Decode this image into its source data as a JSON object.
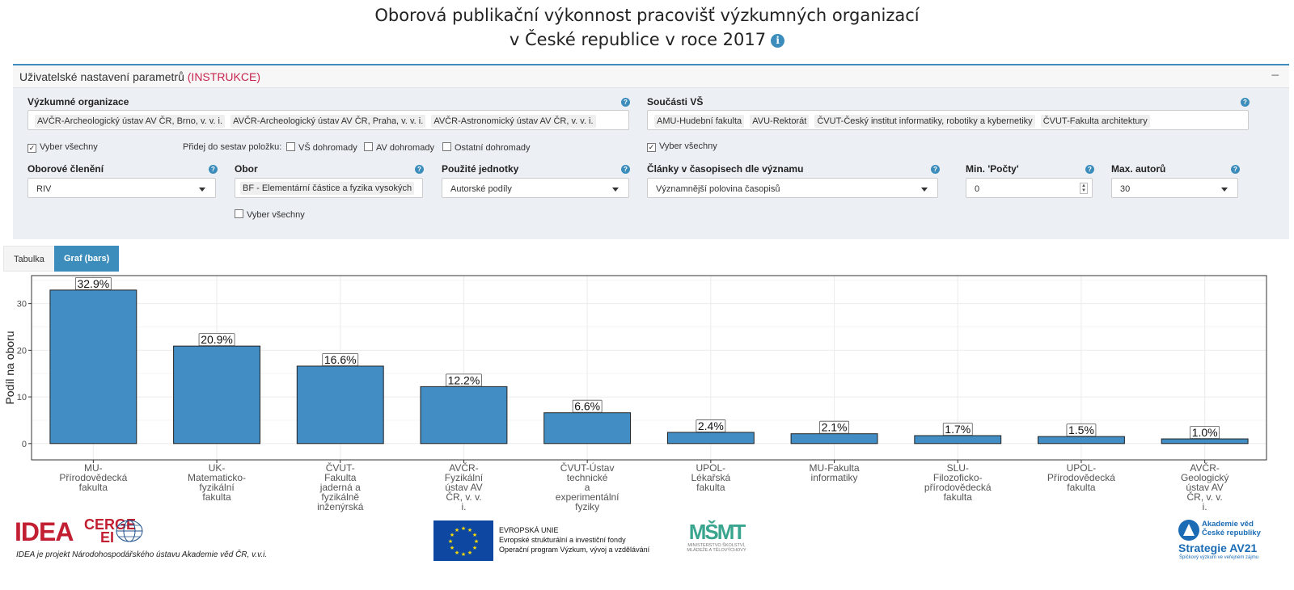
{
  "header": {
    "title_line1": "Oborová publikační výkonnost pracovišť výzkumných organizací",
    "title_line2": "v České republice v roce 2017",
    "info_icon": "i"
  },
  "settings": {
    "title": "Uživatelské nastavení parametrů",
    "instructions_link": "(INSTRUKCE)",
    "collapse_symbol": "−",
    "research_orgs": {
      "label": "Výzkumné organizace",
      "tags": [
        "AVČR-Archeologický ústav AV ČR, Brno, v. v. i.",
        "AVČR-Archeologický ústav AV ČR, Praha, v. v. i.",
        "AVČR-Astronomický ústav AV ČR, v. v. i."
      ]
    },
    "university_parts": {
      "label": "Součásti VŠ",
      "tags": [
        "AMU-Hudební fakulta",
        "AVU-Rektorát",
        "ČVUT-Český institut informatiky, robotiky a kybernetiky",
        "ČVUT-Fakulta architektury"
      ]
    },
    "select_all_label": "Vyber všechny",
    "add_to_sets_label": "Přidej do sestav položku:",
    "add_options": [
      "VŠ dohromady",
      "AV dohromady",
      "Ostatní dohromady"
    ],
    "check_mark": "✓",
    "field_division": {
      "label": "Oborové členění",
      "value": "RIV"
    },
    "field": {
      "label": "Obor",
      "value": "BF - Elementární částice a fyzika vysokých"
    },
    "units": {
      "label": "Použité jednotky",
      "value": "Autorské podíly"
    },
    "journal_articles": {
      "label": "Články v časopisech dle významu",
      "value": "Významnější polovina časopisů"
    },
    "min_counts": {
      "label": "Min. 'Počty'",
      "value": "0"
    },
    "max_authors": {
      "label": "Max. autorů",
      "value": "30"
    },
    "help_symbol": "?"
  },
  "tabs": [
    {
      "label": "Tabulka",
      "active": false
    },
    {
      "label": "Graf (bars)",
      "active": true
    }
  ],
  "chart_data": {
    "type": "bar",
    "ylabel": "Podíl na oboru",
    "xlabel": "",
    "ylim": [
      -3.5,
      36
    ],
    "yticks": [
      0,
      10,
      20,
      30
    ],
    "categories": [
      [
        "MU-",
        "Přírodovědecká",
        "fakulta"
      ],
      [
        "UK-",
        "Matematicko-",
        "fyzikální",
        "fakulta"
      ],
      [
        "ČVUT-",
        "Fakulta",
        "jaderná a",
        "fyzikálně",
        "inženýrská"
      ],
      [
        "AVČR-",
        "Fyzikální",
        "ústav AV",
        "ČR, v. v.",
        "i."
      ],
      [
        "ČVUT-Ústav",
        "technické",
        "a",
        "experimentální",
        "fyziky"
      ],
      [
        "UPOL-",
        "Lékařská",
        "fakulta"
      ],
      [
        "MU-Fakulta",
        "informatiky"
      ],
      [
        "SLU-",
        "Filozoficko-",
        "přírodovědecká",
        "fakulta"
      ],
      [
        "UPOL-",
        "Přírodovědecká",
        "fakulta"
      ],
      [
        "AVČR-",
        "Geologický",
        "ústav AV",
        "ČR, v. v.",
        "i."
      ]
    ],
    "values": [
      32.9,
      20.9,
      16.6,
      12.2,
      6.6,
      2.4,
      2.1,
      1.7,
      1.5,
      1.0
    ],
    "data_labels": [
      "32.9%",
      "20.9%",
      "16.6%",
      "12.2%",
      "6.6%",
      "2.4%",
      "2.1%",
      "1.7%",
      "1.5%",
      "1.0%"
    ],
    "bar_color": "#428ec4",
    "grid": true
  },
  "footer": {
    "idea_logo": "IDEA",
    "cerge_logo_line1": "CERGE",
    "cerge_logo_line2": "EI",
    "idea_note": "IDEA je projekt Národohospodářského ústavu Akademie věd ČR, v.v.i.",
    "eu_text_line1": "EVROPSKÁ UNIE",
    "eu_text_line2": "Evropské strukturální a investiční fondy",
    "eu_text_line3": "Operační program Výzkum, vývoj a vzdělávání",
    "msmt_logo": "MŠMT",
    "msmt_text_line1": "MINISTERSTVO ŠKOLSTVÍ,",
    "msmt_text_line2": "MLÁDEŽE A TĚLOVÝCHOVY",
    "av_text_line1": "Akademie věd",
    "av_text_line2": "České republiky",
    "av_strategy": "Strategie AV21",
    "av_sub": "Špičkový výzkum ve veřejném zájmu"
  }
}
